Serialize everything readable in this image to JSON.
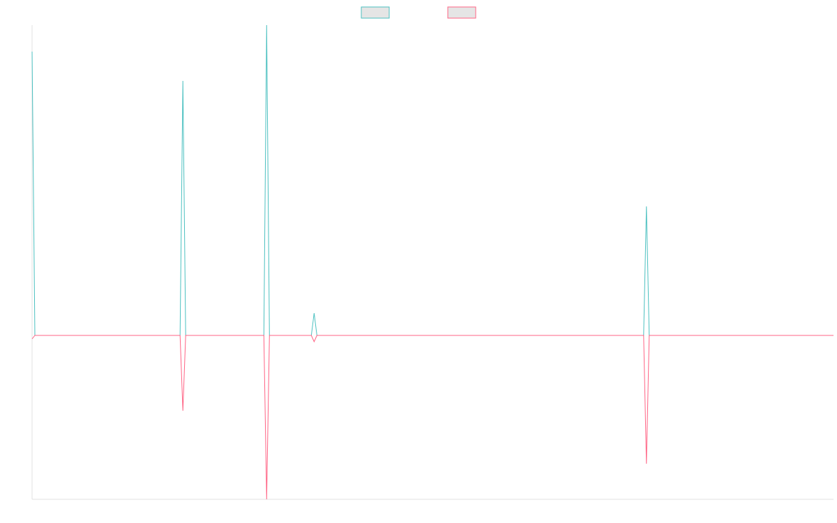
{
  "chart_data": {
    "type": "line",
    "x": [
      0,
      1,
      53,
      54,
      55,
      83,
      84,
      85,
      100,
      101,
      102,
      219,
      220,
      221,
      287
    ],
    "xlim": [
      0,
      287
    ],
    "ylim": [
      -235,
      445
    ],
    "series": [
      {
        "color": "#4bc0c0",
        "values": [
          407,
          0,
          0,
          365,
          0,
          0,
          445,
          0,
          0,
          32,
          0,
          0,
          185,
          0,
          0
        ]
      },
      {
        "color": "#ff6384",
        "values": [
          -5,
          0,
          0,
          -108,
          0,
          0,
          -235,
          0,
          0,
          -9,
          0,
          0,
          -184,
          0,
          0
        ]
      }
    ]
  }
}
